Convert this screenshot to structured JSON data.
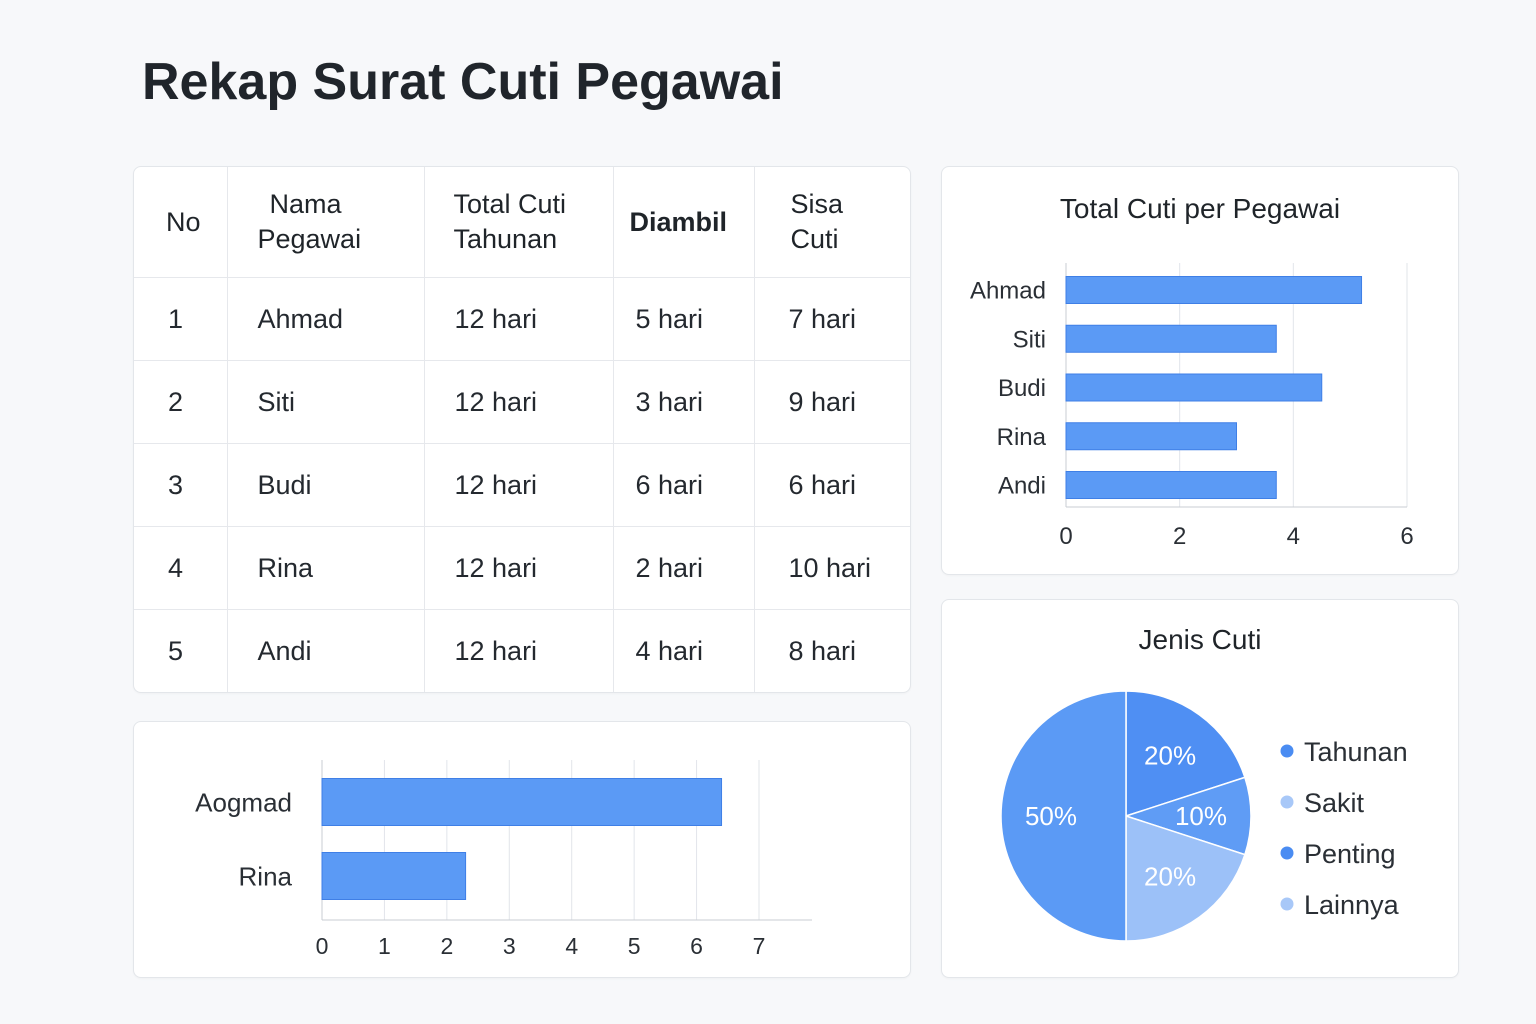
{
  "page": {
    "title": "Rekap Surat Cuti Pegawai"
  },
  "table": {
    "headers": {
      "no": "No",
      "nama": [
        "Nama",
        "Pegawai"
      ],
      "total": [
        "Total Cuti",
        "Tahunan"
      ],
      "diambil": "Diambil",
      "sisa": [
        "Sisa",
        "Cuti"
      ]
    },
    "rows": [
      {
        "no": "1",
        "nama": "Ahmad",
        "total": "12 hari",
        "diambil": "5 hari",
        "sisa": "7 hari"
      },
      {
        "no": "2",
        "nama": "Siti",
        "total": "12 hari",
        "diambil": "3 hari",
        "sisa": "9 hari"
      },
      {
        "no": "3",
        "nama": "Budi",
        "total": "12 hari",
        "diambil": "6 hari",
        "sisa": "6 hari"
      },
      {
        "no": "4",
        "nama": "Rina",
        "total": "12 hari",
        "diambil": "2 hari",
        "sisa": "10 hari"
      },
      {
        "no": "5",
        "nama": "Andi",
        "total": "12 hari",
        "diambil": "4 hari",
        "sisa": "8 hari"
      }
    ]
  },
  "colors": {
    "bar": "#5b9af5",
    "bar_stroke": "#3f7fe6",
    "pie_dark": "#4f8ff3",
    "pie_mid": "#5f9cf5",
    "pie_light": "#9cc1f8",
    "legend_dark": "#4a8cf2",
    "legend_light": "#a8c8f8",
    "grid": "#e2e5ea",
    "axis": "#c9cdd3"
  },
  "chart_data": [
    {
      "id": "total-cuti-per-pegawai",
      "type": "bar",
      "orientation": "horizontal",
      "title": "Total Cuti per Pegawai",
      "categories": [
        "Ahmad",
        "Siti",
        "Budi",
        "Rina",
        "Andi"
      ],
      "values": [
        5.2,
        3.7,
        4.5,
        3.0,
        3.7
      ],
      "xlim": [
        0,
        6
      ],
      "xticks": [
        "0",
        "2",
        "4",
        "6"
      ],
      "grid": true
    },
    {
      "id": "bar-chart-bottom",
      "type": "bar",
      "orientation": "horizontal",
      "categories": [
        "Aogmad",
        "Rina"
      ],
      "values": [
        6.4,
        2.3
      ],
      "xlim": [
        0,
        7
      ],
      "xticks": [
        "0",
        "1",
        "2",
        "3",
        "4",
        "5",
        "6",
        "7"
      ],
      "grid": true
    },
    {
      "id": "jenis-cuti",
      "type": "pie",
      "title": "Jenis Cuti",
      "slices": [
        {
          "label": "20%",
          "value": 20,
          "color": "#4f8ff3"
        },
        {
          "label": "10%",
          "value": 10,
          "color": "#5f9cf5"
        },
        {
          "label": "20%",
          "value": 20,
          "color": "#9cc1f8"
        },
        {
          "label": "50%",
          "value": 50,
          "color": "#5b9af5"
        }
      ],
      "legend": [
        {
          "label": "Tahunan",
          "color": "#4a8cf2"
        },
        {
          "label": "Sakit",
          "color": "#a8c8f8"
        },
        {
          "label": "Penting",
          "color": "#4a8cf2"
        },
        {
          "label": "Lainnya",
          "color": "#a8c8f8"
        }
      ],
      "legend_position": "right"
    }
  ]
}
